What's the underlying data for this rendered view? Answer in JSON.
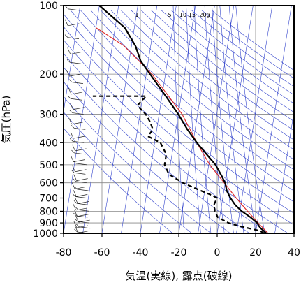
{
  "chart_data": {
    "type": "skew-t",
    "xlabel": "気温(実線), 露点(破線)",
    "ylabel": "気圧(hPa)",
    "xlim": [
      -80,
      40
    ],
    "ylim": [
      1000,
      100
    ],
    "yscale": "log",
    "x_ticks": [
      -80,
      -60,
      -40,
      -20,
      0,
      20,
      40
    ],
    "x_tick_labels": [
      "-80",
      "-60",
      "-40",
      "-20",
      "0",
      "20",
      "40"
    ],
    "y_ticks": [
      1000,
      900,
      800,
      700,
      600,
      500,
      400,
      300,
      200,
      100
    ],
    "y_tick_labels": [
      "1000",
      "900",
      "800",
      "700",
      "600",
      "500",
      "400",
      "300",
      "200",
      "100"
    ],
    "mixing_ratio_labels": [
      "1",
      "5",
      "10",
      "15",
      "20g"
    ],
    "grid": true,
    "colors": {
      "temperature": "#000000",
      "dewpoint": "#000000",
      "reference": "#dd2222",
      "background_lines": "#3344cc",
      "grid": "#888888"
    },
    "series": [
      {
        "role": "temperature",
        "style": "solid",
        "pressure": [
          1000,
          975,
          950,
          925,
          900,
          850,
          800,
          750,
          700,
          650,
          600,
          550,
          500,
          450,
          400,
          350,
          300,
          250,
          200,
          175,
          150,
          125,
          100
        ],
        "temperature": [
          25.6,
          24.0,
          22.2,
          21.0,
          20.0,
          16.0,
          11.0,
          7.0,
          4.0,
          1.5,
          0.0,
          -3.0,
          -6.5,
          -12.0,
          -18.0,
          -24.0,
          -30.0,
          -38.0,
          -48.0,
          -54.0,
          -58.0,
          -65.0,
          -80.0
        ]
      },
      {
        "role": "dewpoint",
        "style": "dashed",
        "pressure": [
          1000,
          975,
          950,
          925,
          900,
          850,
          800,
          750,
          700,
          680,
          650,
          600,
          550,
          500,
          450,
          400,
          375,
          350,
          325,
          300,
          275,
          260,
          250,
          250
        ],
        "temperature": [
          24.5,
          22.0,
          16.0,
          10.0,
          5.0,
          -1.0,
          -3.0,
          -4.0,
          -3.0,
          -6.0,
          -12.0,
          -22.0,
          -30.0,
          -33.0,
          -33.0,
          -37.0,
          -44.0,
          -42.0,
          -44.0,
          -47.0,
          -52.0,
          -50.0,
          -48.0,
          -76.0
        ]
      },
      {
        "role": "reference",
        "style": "solid",
        "pressure": [
          1000,
          900,
          800,
          700,
          600,
          500,
          400,
          300,
          200,
          150,
          125
        ],
        "temperature": [
          26.5,
          20.5,
          14.0,
          7.0,
          -0.5,
          -9.5,
          -18.0,
          -28.0,
          -47.0,
          -64.0,
          -80.0
        ]
      }
    ],
    "wind_barbs": true
  }
}
